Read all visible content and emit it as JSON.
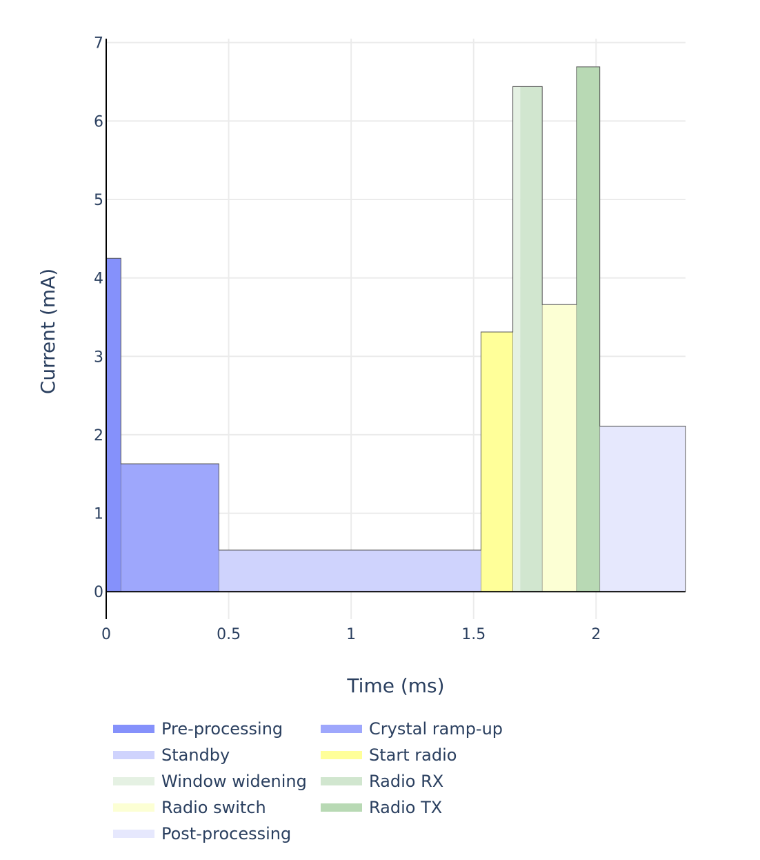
{
  "chart_data": {
    "type": "bar",
    "xlabel": "Time (ms)",
    "ylabel": "Current (mA)",
    "xlim": [
      0,
      2.365
    ],
    "ylim": [
      -0.35,
      7.05
    ],
    "x_ticks": [
      0,
      0.5,
      1,
      1.5,
      2
    ],
    "x_tick_labels": [
      "0",
      "0.5",
      "1",
      "1.5",
      "2"
    ],
    "y_ticks": [
      0,
      1,
      2,
      3,
      4,
      5,
      6,
      7
    ],
    "y_tick_labels": [
      "0",
      "1",
      "2",
      "3",
      "4",
      "5",
      "6",
      "7"
    ],
    "grid": true,
    "legend_position": "bottom",
    "series": [
      {
        "name": "Pre-processing",
        "x_start": 0.0,
        "x_end": 0.06,
        "value": 4.25,
        "color": "#8591fb"
      },
      {
        "name": "Crystal ramp-up",
        "x_start": 0.06,
        "x_end": 0.46,
        "value": 1.63,
        "color": "#9ea7fc"
      },
      {
        "name": "Standby",
        "x_start": 0.46,
        "x_end": 1.53,
        "value": 0.53,
        "color": "#cfd3fd"
      },
      {
        "name": "Start radio",
        "x_start": 1.53,
        "x_end": 1.66,
        "value": 3.31,
        "color": "#ffff99"
      },
      {
        "name": "Window widening",
        "x_start": 1.66,
        "x_end": 1.69,
        "value": 6.44,
        "color": "#e5f1e3"
      },
      {
        "name": "Radio RX",
        "x_start": 1.69,
        "x_end": 1.78,
        "value": 6.44,
        "color": "#d1e6cf"
      },
      {
        "name": "Radio switch",
        "x_start": 1.78,
        "x_end": 1.92,
        "value": 3.66,
        "color": "#fcffd4"
      },
      {
        "name": "Radio TX",
        "x_start": 1.92,
        "x_end": 2.015,
        "value": 6.69,
        "color": "#b8d9b4"
      },
      {
        "name": "Post-processing",
        "x_start": 2.015,
        "x_end": 2.365,
        "value": 2.11,
        "color": "#e6e8fd"
      }
    ]
  }
}
